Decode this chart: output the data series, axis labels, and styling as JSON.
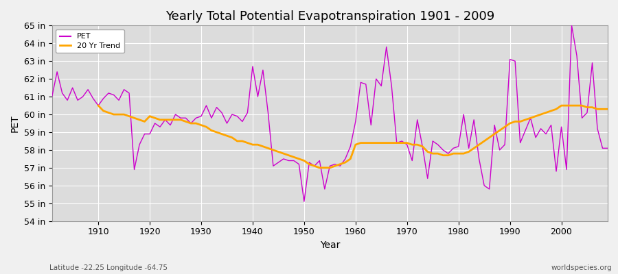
{
  "title": "Yearly Total Potential Evapotranspiration 1901 - 2009",
  "xlabel": "Year",
  "ylabel": "PET",
  "lat_lon_label": "Latitude -22.25 Longitude -64.75",
  "watermark": "worldspecies.org",
  "ylim": [
    54,
    65
  ],
  "yticks": [
    54,
    55,
    56,
    57,
    58,
    59,
    60,
    61,
    62,
    63,
    64,
    65
  ],
  "ytick_labels": [
    "54 in",
    "55 in",
    "56 in",
    "57 in",
    "58 in",
    "59 in",
    "60 in",
    "61 in",
    "62 in",
    "63 in",
    "64 in",
    "65 in"
  ],
  "xlim": [
    1901,
    2009
  ],
  "xticks": [
    1910,
    1920,
    1930,
    1940,
    1950,
    1960,
    1970,
    1980,
    1990,
    2000
  ],
  "pet_color": "#CC00CC",
  "trend_color": "#FFA500",
  "figure_bg_color": "#F0F0F0",
  "plot_bg_color": "#DCDCDC",
  "grid_color": "#FFFFFF",
  "title_fontsize": 13,
  "axis_fontsize": 9,
  "years": [
    1901,
    1902,
    1903,
    1904,
    1905,
    1906,
    1907,
    1908,
    1909,
    1910,
    1911,
    1912,
    1913,
    1914,
    1915,
    1916,
    1917,
    1918,
    1919,
    1920,
    1921,
    1922,
    1923,
    1924,
    1925,
    1926,
    1927,
    1928,
    1929,
    1930,
    1931,
    1932,
    1933,
    1934,
    1935,
    1936,
    1937,
    1938,
    1939,
    1940,
    1941,
    1942,
    1943,
    1944,
    1945,
    1946,
    1947,
    1948,
    1949,
    1950,
    1951,
    1952,
    1953,
    1954,
    1955,
    1956,
    1957,
    1958,
    1959,
    1960,
    1961,
    1962,
    1963,
    1964,
    1965,
    1966,
    1967,
    1968,
    1969,
    1970,
    1971,
    1972,
    1973,
    1974,
    1975,
    1976,
    1977,
    1978,
    1979,
    1980,
    1981,
    1982,
    1983,
    1984,
    1985,
    1986,
    1987,
    1988,
    1989,
    1990,
    1991,
    1992,
    1993,
    1994,
    1995,
    1996,
    1997,
    1998,
    1999,
    2000,
    2001,
    2002,
    2003,
    2004,
    2005,
    2006,
    2007,
    2008,
    2009
  ],
  "pet_values": [
    61.0,
    62.4,
    61.2,
    60.8,
    61.5,
    60.8,
    61.0,
    61.4,
    60.9,
    60.5,
    60.9,
    61.2,
    61.1,
    60.8,
    61.4,
    61.2,
    56.9,
    58.3,
    58.9,
    58.9,
    59.5,
    59.3,
    59.7,
    59.4,
    60.0,
    59.8,
    59.8,
    59.5,
    59.8,
    59.9,
    60.5,
    59.8,
    60.4,
    60.1,
    59.5,
    60.0,
    59.9,
    59.6,
    60.1,
    62.7,
    61.0,
    62.5,
    60.1,
    57.1,
    57.3,
    57.5,
    57.4,
    57.4,
    57.2,
    55.1,
    57.3,
    57.1,
    57.4,
    55.8,
    57.1,
    57.2,
    57.1,
    57.5,
    58.2,
    59.6,
    61.8,
    61.7,
    59.4,
    62.0,
    61.6,
    63.8,
    61.6,
    58.4,
    58.5,
    58.3,
    57.4,
    59.7,
    58.2,
    56.4,
    58.5,
    58.3,
    58.0,
    57.8,
    58.1,
    58.2,
    60.0,
    58.1,
    59.7,
    57.5,
    56.0,
    55.8,
    59.4,
    58.0,
    58.3,
    63.1,
    63.0,
    58.4,
    59.1,
    59.8,
    58.7,
    59.2,
    58.9,
    59.4,
    56.8,
    59.3,
    56.9,
    65.0,
    63.3,
    59.8,
    60.1,
    62.9,
    59.2,
    58.1,
    58.1
  ],
  "trend_values": [
    null,
    null,
    null,
    null,
    null,
    null,
    null,
    null,
    null,
    60.5,
    60.2,
    60.1,
    60.0,
    60.0,
    60.0,
    59.9,
    59.8,
    59.7,
    59.6,
    59.9,
    59.8,
    59.7,
    59.7,
    59.7,
    59.7,
    59.7,
    59.6,
    59.5,
    59.5,
    59.4,
    59.3,
    59.1,
    59.0,
    58.9,
    58.8,
    58.7,
    58.5,
    58.5,
    58.4,
    58.3,
    58.3,
    58.2,
    58.1,
    58.0,
    57.9,
    57.8,
    57.7,
    57.6,
    57.5,
    57.4,
    57.2,
    57.1,
    57.0,
    57.0,
    57.0,
    57.1,
    57.2,
    57.3,
    57.5,
    58.3,
    58.4,
    58.4,
    58.4,
    58.4,
    58.4,
    58.4,
    58.4,
    58.4,
    58.4,
    58.4,
    58.3,
    58.3,
    58.2,
    57.9,
    57.8,
    57.8,
    57.7,
    57.7,
    57.8,
    57.8,
    57.8,
    57.9,
    58.1,
    58.3,
    58.5,
    58.7,
    58.9,
    59.1,
    59.3,
    59.5,
    59.6,
    59.6,
    59.7,
    59.8,
    59.9,
    60.0,
    60.1,
    60.2,
    60.3,
    60.5,
    60.5,
    60.5,
    60.5,
    60.5,
    60.4,
    60.4,
    60.3,
    60.3,
    60.3
  ]
}
